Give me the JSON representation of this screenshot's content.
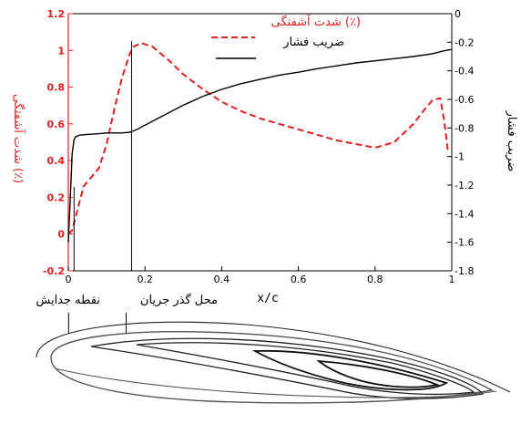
{
  "chart_data": {
    "type": "line",
    "xlabel": "x/c",
    "ylabel_left": "شدت آشفتگی (٪)",
    "ylabel_right": "ضریب فشار",
    "xlim": [
      0,
      1
    ],
    "ylim_left": [
      -0.2,
      1.2
    ],
    "ylim_right": [
      -1.8,
      0
    ],
    "x_ticks": [
      "0",
      "0.2",
      "0.4",
      "0.6",
      "0.8",
      "1"
    ],
    "y_ticks_left": [
      "-0.2",
      "0",
      "0.2",
      "0.4",
      "0.6",
      "0.8",
      "1",
      "1.2"
    ],
    "y_ticks_right": [
      "0",
      "-0.2",
      "-0.4",
      "-0.6",
      "-0.8",
      "-1",
      "-1.2",
      "-1.4",
      "-1.6",
      "-1.8"
    ],
    "legend_position": "top-right",
    "series": [
      {
        "name": "شدت آشفتگی (٪)",
        "axis": "left",
        "color": "#e02020",
        "style": "dashed",
        "x": [
          0.0,
          0.01,
          0.02,
          0.04,
          0.06,
          0.08,
          0.1,
          0.12,
          0.14,
          0.16,
          0.17,
          0.19,
          0.22,
          0.26,
          0.3,
          0.35,
          0.4,
          0.45,
          0.5,
          0.55,
          0.6,
          0.65,
          0.7,
          0.75,
          0.8,
          0.85,
          0.9,
          0.93,
          0.95,
          0.97,
          0.98,
          0.99
        ],
        "y": [
          0.0,
          0.02,
          0.1,
          0.26,
          0.31,
          0.36,
          0.49,
          0.68,
          0.85,
          0.98,
          1.02,
          1.04,
          1.02,
          0.95,
          0.87,
          0.79,
          0.72,
          0.67,
          0.63,
          0.6,
          0.57,
          0.54,
          0.51,
          0.49,
          0.47,
          0.5,
          0.6,
          0.68,
          0.73,
          0.74,
          0.62,
          0.45
        ]
      },
      {
        "name": "ضریب فشار",
        "axis": "right",
        "color": "#000000",
        "style": "solid",
        "x": [
          0.0,
          0.005,
          0.01,
          0.015,
          0.02,
          0.03,
          0.05,
          0.08,
          0.1,
          0.12,
          0.14,
          0.16,
          0.18,
          0.2,
          0.25,
          0.3,
          0.35,
          0.4,
          0.45,
          0.5,
          0.55,
          0.6,
          0.65,
          0.7,
          0.75,
          0.8,
          0.85,
          0.9,
          0.95,
          0.98,
          1.0
        ],
        "y": [
          -1.6,
          -1.3,
          -0.98,
          -0.88,
          -0.86,
          -0.85,
          -0.845,
          -0.84,
          -0.835,
          -0.835,
          -0.835,
          -0.83,
          -0.81,
          -0.78,
          -0.71,
          -0.64,
          -0.58,
          -0.53,
          -0.49,
          -0.46,
          -0.43,
          -0.41,
          -0.385,
          -0.365,
          -0.345,
          -0.33,
          -0.315,
          -0.3,
          -0.28,
          -0.26,
          -0.25
        ]
      }
    ],
    "markers": [
      {
        "x": 0.015,
        "label": "نقطه جدایش"
      },
      {
        "x": 0.165,
        "label": "محل گذر جریان"
      }
    ]
  }
}
